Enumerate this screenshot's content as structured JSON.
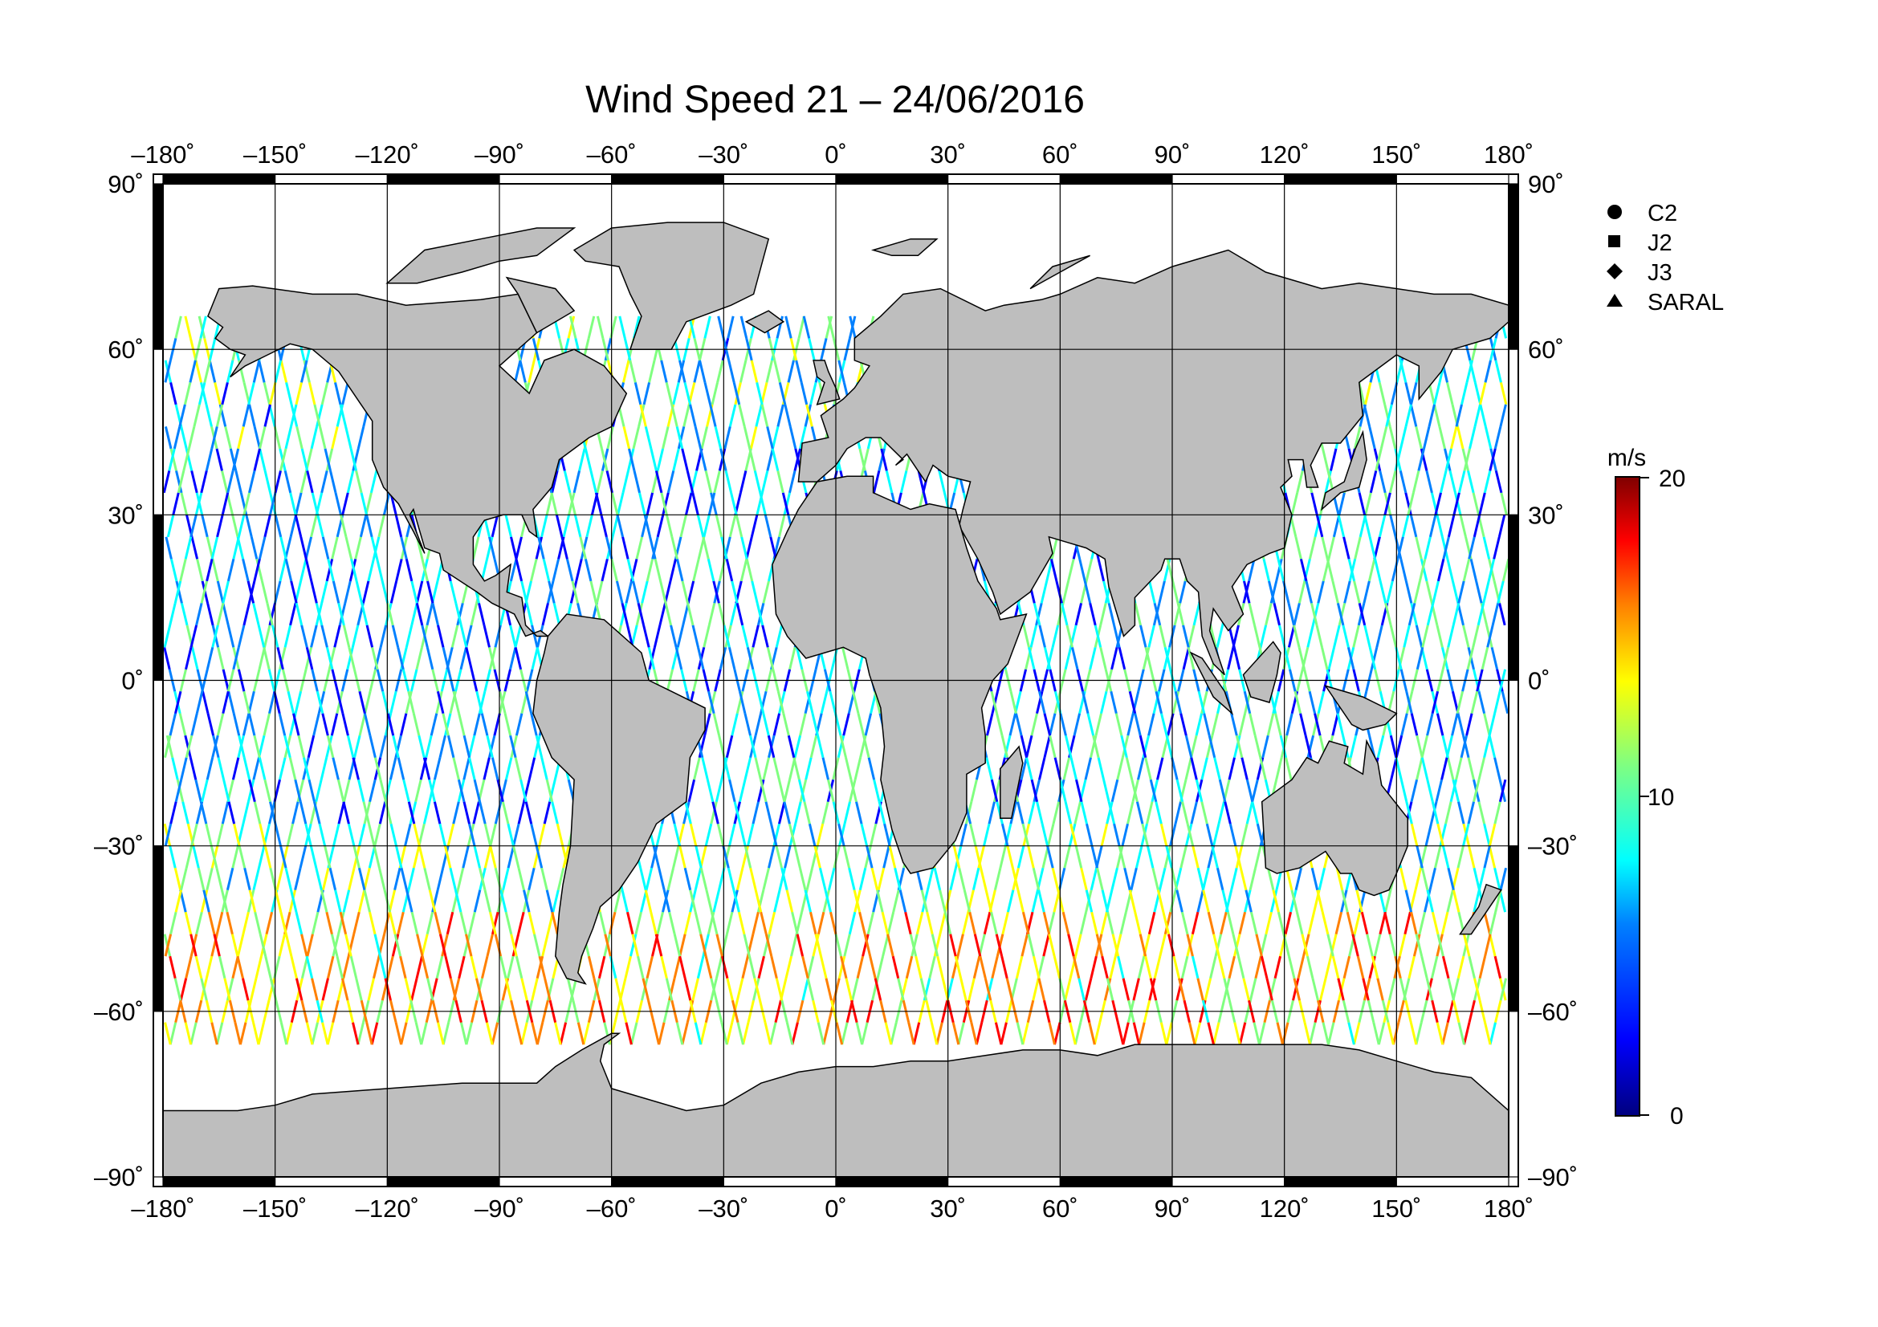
{
  "title": "Wind Speed 21 – 24/06/2016",
  "map": {
    "projection": "plate-carree",
    "lon_range": [
      -180,
      180
    ],
    "lat_range": [
      -90,
      90
    ],
    "lon_ticks": [
      "–180˚",
      "–150˚",
      "–120˚",
      "–90˚",
      "–60˚",
      "–30˚",
      "0˚",
      "30˚",
      "60˚",
      "90˚",
      "120˚",
      "150˚",
      "180˚"
    ],
    "lat_ticks_left": [
      "90˚",
      "60˚",
      "30˚",
      "0˚",
      "–30˚",
      "–60˚",
      "–90˚"
    ],
    "lat_ticks_right": [
      "90˚",
      "60˚",
      "30˚",
      "0˚",
      "–30˚",
      "–60˚",
      "–90˚"
    ],
    "land_color": "#bebebe",
    "grid": true
  },
  "legend": {
    "items": [
      {
        "label": "C2",
        "symbol": "circle-icon"
      },
      {
        "label": "J2",
        "symbol": "square-icon"
      },
      {
        "label": "J3",
        "symbol": "diamond-icon"
      },
      {
        "label": "SARAL",
        "symbol": "triangle-icon"
      }
    ]
  },
  "colorbar": {
    "unit": "m/s",
    "max_label": "20",
    "mid_label": "10",
    "min_label": "0",
    "range": [
      0,
      20
    ],
    "colormap": [
      "#00007f",
      "#0000ff",
      "#0080ff",
      "#00ffff",
      "#80ff80",
      "#ffff00",
      "#ff8000",
      "#ff0000",
      "#7f0000"
    ]
  }
}
